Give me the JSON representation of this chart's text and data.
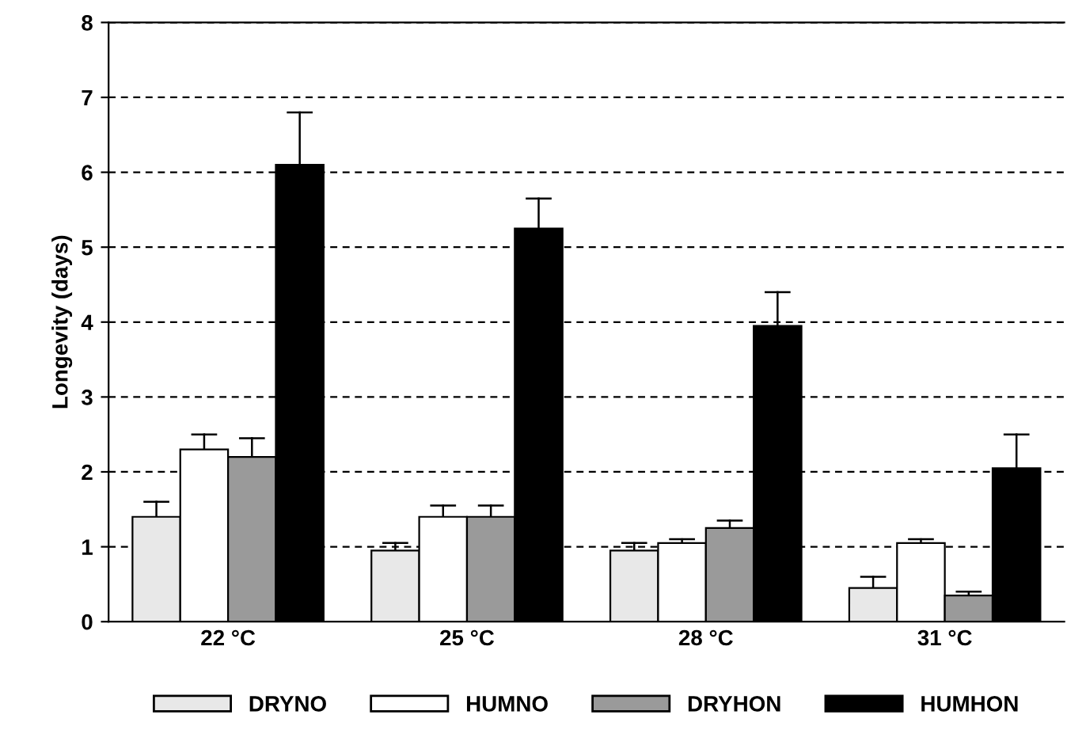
{
  "chart_data": {
    "type": "bar",
    "ylabel": "Longevity (days)",
    "categories": [
      "22 °C",
      "25 °C",
      "28 °C",
      "31 °C"
    ],
    "series": [
      {
        "name": "DRYNO",
        "color": "#e8e8e8",
        "values": [
          1.4,
          0.95,
          0.95,
          0.45
        ],
        "errors": [
          [
            1.4,
            1.6
          ],
          [
            0.95,
            1.05
          ],
          [
            0.95,
            1.05
          ],
          [
            0.45,
            0.6
          ]
        ]
      },
      {
        "name": "HUMNO",
        "color": "#ffffff",
        "values": [
          2.3,
          1.4,
          1.05,
          1.05
        ],
        "errors": [
          [
            2.3,
            2.5
          ],
          [
            1.4,
            1.55
          ],
          [
            1.05,
            1.1
          ],
          [
            1.05,
            1.1
          ]
        ]
      },
      {
        "name": "DRYHON",
        "color": "#9a9a9a",
        "values": [
          2.2,
          1.4,
          1.25,
          0.35
        ],
        "errors": [
          [
            2.2,
            2.45
          ],
          [
            1.4,
            1.55
          ],
          [
            1.25,
            1.35
          ],
          [
            0.35,
            0.4
          ]
        ]
      },
      {
        "name": "HUMHON",
        "color": "#000000",
        "values": [
          6.1,
          5.25,
          3.95,
          2.05
        ],
        "errors": [
          [
            6.1,
            6.8
          ],
          [
            5.25,
            5.65
          ],
          [
            3.95,
            4.4
          ],
          [
            2.05,
            2.5
          ]
        ]
      }
    ],
    "ylim": [
      0,
      8
    ],
    "yticks": [
      0,
      1,
      2,
      3,
      4,
      5,
      6,
      7,
      8
    ],
    "grid": "y",
    "legend": "bottom"
  }
}
